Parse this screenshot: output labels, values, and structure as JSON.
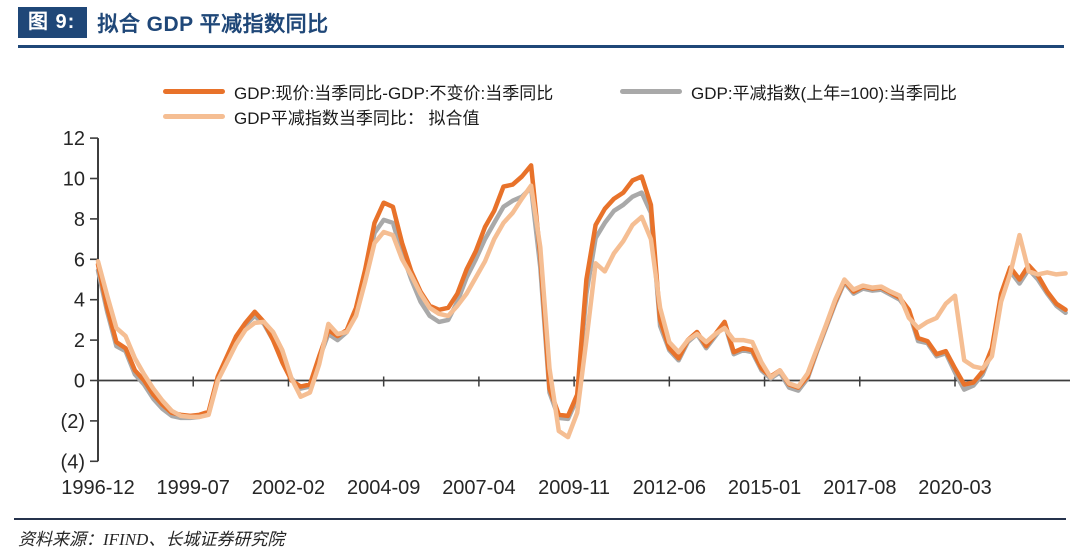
{
  "header": {
    "figure_label": "图 9:",
    "title": "拟合 GDP 平减指数同比"
  },
  "footer": {
    "source": "资料来源：IFIND、长城证券研究院"
  },
  "colors": {
    "navy_accent": "#1F4778",
    "negative_tick": "#FF0000",
    "axis": "#3d3d3d"
  },
  "chart_data": {
    "type": "line",
    "title": "拟合 GDP 平减指数同比",
    "grid": false,
    "legend_position": "top-left, two rows",
    "x_frequency": "quarterly",
    "ylim": [
      -4,
      12
    ],
    "y_ticks": [
      {
        "v": 12,
        "label": "12"
      },
      {
        "v": 10,
        "label": "10"
      },
      {
        "v": 8,
        "label": "8"
      },
      {
        "v": 6,
        "label": "6"
      },
      {
        "v": 4,
        "label": "4"
      },
      {
        "v": 2,
        "label": "2"
      },
      {
        "v": 0,
        "label": "0"
      },
      {
        "v": -2,
        "label": "(2)"
      },
      {
        "v": -4,
        "label": "(4)"
      }
    ],
    "x_tick_labels": [
      "1996-12",
      "1999-07",
      "2002-02",
      "2004-09",
      "2007-04",
      "2009-11",
      "2012-06",
      "2015-01",
      "2017-08",
      "2020-03"
    ],
    "x_tick_month_offsets": [
      0,
      31,
      62,
      93,
      124,
      155,
      186,
      217,
      248,
      279
    ],
    "draw_order": [
      1,
      0,
      2
    ],
    "x_dates": [
      "1996-12",
      "1997-03",
      "1997-06",
      "1997-09",
      "1997-12",
      "1998-03",
      "1998-06",
      "1998-09",
      "1998-12",
      "1999-03",
      "1999-06",
      "1999-09",
      "1999-12",
      "2000-03",
      "2000-06",
      "2000-09",
      "2000-12",
      "2001-03",
      "2001-06",
      "2001-09",
      "2001-12",
      "2002-03",
      "2002-06",
      "2002-09",
      "2002-12",
      "2003-03",
      "2003-06",
      "2003-09",
      "2003-12",
      "2004-03",
      "2004-06",
      "2004-09",
      "2004-12",
      "2005-03",
      "2005-06",
      "2005-09",
      "2005-12",
      "2006-03",
      "2006-06",
      "2006-09",
      "2006-12",
      "2007-03",
      "2007-06",
      "2007-09",
      "2007-12",
      "2008-03",
      "2008-06",
      "2008-09",
      "2008-12",
      "2009-03",
      "2009-06",
      "2009-09",
      "2009-12",
      "2010-03",
      "2010-06",
      "2010-09",
      "2010-12",
      "2011-03",
      "2011-06",
      "2011-09",
      "2011-12",
      "2012-03",
      "2012-06",
      "2012-09",
      "2012-12",
      "2013-03",
      "2013-06",
      "2013-09",
      "2013-12",
      "2014-03",
      "2014-06",
      "2014-09",
      "2014-12",
      "2015-03",
      "2015-06",
      "2015-09",
      "2015-12",
      "2016-03",
      "2016-06",
      "2016-09",
      "2016-12",
      "2017-03",
      "2017-06",
      "2017-09",
      "2017-12",
      "2018-03",
      "2018-06",
      "2018-09",
      "2018-12",
      "2019-03",
      "2019-06",
      "2019-09",
      "2019-12",
      "2020-03",
      "2020-06",
      "2020-09",
      "2020-12",
      "2021-03",
      "2021-06",
      "2021-09",
      "2021-12",
      "2022-03",
      "2022-06",
      "2022-09",
      "2022-12",
      "2023-03"
    ],
    "series": [
      {
        "name": "GDP:现价:当季同比-GDP:不变价:当季同比",
        "color": "#E8722A",
        "values": [
          5.75,
          3.6,
          1.9,
          1.6,
          0.5,
          0.0,
          -0.7,
          -1.2,
          -1.6,
          -1.7,
          -1.75,
          -1.7,
          -1.55,
          0.2,
          1.2,
          2.2,
          2.85,
          3.4,
          2.9,
          2.0,
          0.9,
          0.0,
          -0.3,
          -0.2,
          1.2,
          2.5,
          2.2,
          2.5,
          3.6,
          5.5,
          7.8,
          8.8,
          8.6,
          6.8,
          5.4,
          4.4,
          3.7,
          3.5,
          3.6,
          4.3,
          5.5,
          6.4,
          7.6,
          8.4,
          9.6,
          9.7,
          10.1,
          10.65,
          6.2,
          -0.4,
          -1.7,
          -1.75,
          -0.7,
          5.0,
          7.7,
          8.5,
          9.0,
          9.3,
          9.9,
          10.1,
          8.7,
          3.0,
          1.6,
          1.1,
          2.0,
          2.4,
          1.7,
          2.3,
          2.9,
          1.4,
          1.6,
          1.5,
          0.6,
          0.2,
          0.5,
          -0.2,
          -0.35,
          0.2,
          1.5,
          2.7,
          3.9,
          4.95,
          4.4,
          4.65,
          4.55,
          4.6,
          4.35,
          4.1,
          3.5,
          2.1,
          1.95,
          1.3,
          1.45,
          0.6,
          -0.2,
          -0.1,
          0.45,
          1.6,
          4.3,
          5.6,
          5.0,
          5.7,
          5.2,
          4.4,
          3.8,
          3.5
        ]
      },
      {
        "name": "GDP:平减指数(上年=100):当季同比",
        "color": "#A9A9A9",
        "values": [
          5.45,
          3.4,
          1.7,
          1.45,
          0.3,
          -0.2,
          -0.9,
          -1.4,
          -1.75,
          -1.85,
          -1.85,
          -1.8,
          -1.65,
          0.1,
          1.1,
          2.1,
          2.75,
          3.2,
          2.8,
          2.0,
          1.0,
          0.1,
          -0.4,
          -0.3,
          1.1,
          2.3,
          2.0,
          2.4,
          3.4,
          5.2,
          7.3,
          7.95,
          7.8,
          6.3,
          5.0,
          3.9,
          3.2,
          2.9,
          3.0,
          3.9,
          5.1,
          6.0,
          7.0,
          7.8,
          8.6,
          8.9,
          9.1,
          9.55,
          5.6,
          -0.6,
          -1.85,
          -1.9,
          -0.9,
          4.3,
          7.05,
          7.8,
          8.4,
          8.7,
          9.1,
          9.3,
          8.3,
          2.7,
          1.5,
          1.0,
          1.9,
          2.3,
          1.6,
          2.2,
          2.8,
          1.3,
          1.5,
          1.4,
          0.5,
          0.1,
          0.4,
          -0.35,
          -0.5,
          0.1,
          1.4,
          2.6,
          3.8,
          4.85,
          4.3,
          4.55,
          4.45,
          4.5,
          4.25,
          4.0,
          3.4,
          1.95,
          1.85,
          1.2,
          1.35,
          0.4,
          -0.45,
          -0.25,
          0.3,
          1.4,
          4.1,
          5.4,
          4.8,
          5.5,
          5.0,
          4.3,
          3.7,
          3.35
        ]
      },
      {
        "name": "GDP平减指数当季同比： 拟合值",
        "color": "#F5BE93",
        "values": [
          5.9,
          4.2,
          2.6,
          2.2,
          1.1,
          0.3,
          -0.4,
          -1.0,
          -1.5,
          -1.75,
          -1.8,
          -1.8,
          -1.7,
          0.0,
          0.9,
          1.8,
          2.5,
          2.85,
          2.9,
          2.4,
          1.5,
          0.1,
          -0.8,
          -0.6,
          0.8,
          2.8,
          2.3,
          2.4,
          3.2,
          4.9,
          6.8,
          7.35,
          7.2,
          6.0,
          5.2,
          4.3,
          3.6,
          3.3,
          3.2,
          3.7,
          4.3,
          5.1,
          5.9,
          7.0,
          7.8,
          8.3,
          9.0,
          9.65,
          6.6,
          0.6,
          -2.5,
          -2.8,
          -1.6,
          2.0,
          5.8,
          5.4,
          6.3,
          6.9,
          7.7,
          8.1,
          7.0,
          3.6,
          1.9,
          1.4,
          2.0,
          2.3,
          1.9,
          2.3,
          2.6,
          2.0,
          2.0,
          1.9,
          0.9,
          0.15,
          0.5,
          -0.15,
          -0.3,
          0.35,
          1.55,
          2.75,
          4.0,
          5.0,
          4.5,
          4.7,
          4.6,
          4.65,
          4.4,
          4.2,
          3.1,
          2.6,
          2.9,
          3.1,
          3.8,
          4.2,
          1.0,
          0.7,
          0.6,
          1.2,
          3.9,
          5.3,
          7.2,
          5.4,
          5.25,
          5.35,
          5.25,
          5.3
        ]
      }
    ]
  }
}
